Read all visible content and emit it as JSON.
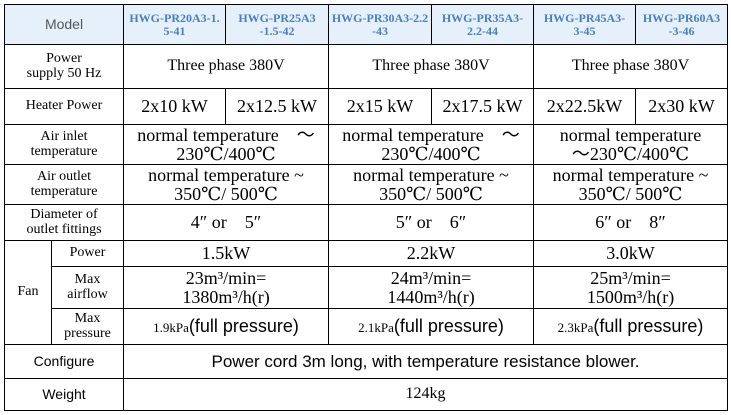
{
  "colors": {
    "header_bg": "#e6f0fa",
    "model_text": "#4a7fc0",
    "border": "#000000"
  },
  "model_label": "Model",
  "models": [
    {
      "l1": "HWG-PR20A3-1.",
      "l2": "5-41"
    },
    {
      "l1": "HWG-PR25A3",
      "l2": "-1.5-42"
    },
    {
      "l1": "HWG-PR30A3-2.2",
      "l2": "-43"
    },
    {
      "l1": "HWG-PR35A3-",
      "l2": "2.2-44"
    },
    {
      "l1": "HWG-PR45A3-",
      "l2": "3-45"
    },
    {
      "l1": "HWG-PR60A3",
      "l2": "-3-46"
    }
  ],
  "power_supply": {
    "label_l1": "Power",
    "label_l2": "supply 50 Hz",
    "values": [
      "Three phase 380V",
      "Three phase 380V",
      "Three phase 380V"
    ]
  },
  "heater_power": {
    "label": "Heater Power",
    "values": [
      "2x10 kW",
      "2x12.5 kW",
      "2x15 kW",
      "2x17.5 kW",
      "2x22.5kW",
      "2x30 kW"
    ]
  },
  "air_inlet": {
    "label_l1": "Air inlet",
    "label_l2": "temperature",
    "values": [
      {
        "l1": "normal temperature　～",
        "l2": "230℃/400℃"
      },
      {
        "l1": "normal temperature　～",
        "l2": "230℃/400℃"
      },
      {
        "l1": "normal temperature",
        "l2": "～230℃/400℃"
      }
    ]
  },
  "air_outlet": {
    "label_l1": "Air outlet",
    "label_l2": "temperature",
    "values": [
      {
        "l1": "normal temperature ~",
        "l2": "350℃/ 500℃"
      },
      {
        "l1": "normal temperature ~",
        "l2": "350℃/ 500℃"
      },
      {
        "l1": "normal temperature ~",
        "l2": "350℃/ 500℃"
      }
    ]
  },
  "outlet_diameter": {
    "label_l1": "Diameter of",
    "label_l2": "outlet fittings",
    "values": [
      "4″ or　5″",
      "5″ or　6″",
      "6″ or　8″"
    ]
  },
  "fan": {
    "label": "Fan",
    "power": {
      "label": "Power",
      "values": [
        "1.5kW",
        "2.2kW",
        "3.0kW"
      ]
    },
    "max_airflow": {
      "label_l1": "Max",
      "label_l2": "airflow",
      "values": [
        {
          "l1": "23m³/min=",
          "l2": "1380m³/h(r)"
        },
        {
          "l1": "24m³/min=",
          "l2": "1440m³/h(r)"
        },
        {
          "l1": "25m³/min=",
          "l2": "1500m³/h(r)"
        }
      ]
    },
    "max_pressure": {
      "label_l1": "Max",
      "label_l2": "pressure",
      "values": [
        {
          "kpa": "1.9kPa",
          "fp": "(full pressure)"
        },
        {
          "kpa": "2.1kPa",
          "fp": "(full pressure)"
        },
        {
          "kpa": "2.3kPa",
          "fp": "(full pressure)"
        }
      ]
    }
  },
  "configure": {
    "label": "Configure",
    "value": "Power cord 3m long, with temperature resistance blower."
  },
  "weight": {
    "label": "Weight",
    "value": "124kg"
  }
}
